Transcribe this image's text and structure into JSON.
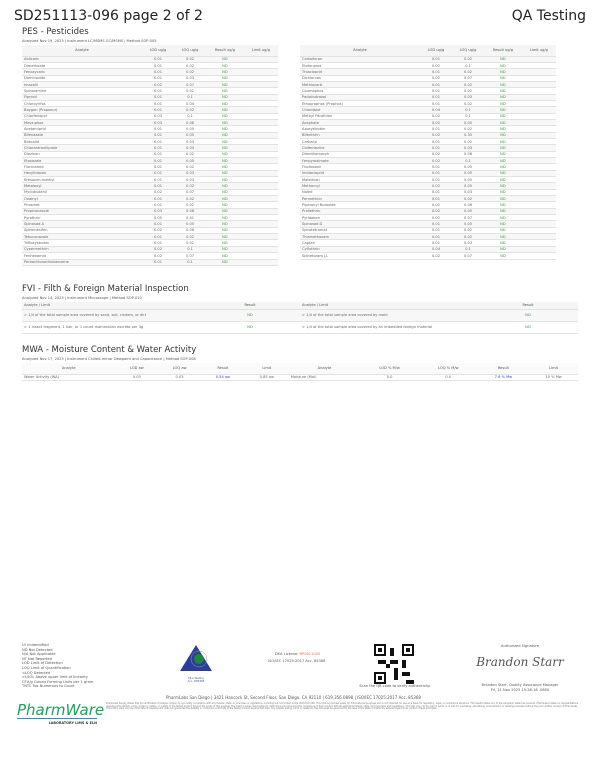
{
  "header": {
    "title": "SD251113-096 page 2 of 2",
    "right": "QA Testing"
  },
  "pes": {
    "title": "PES - Pesticides",
    "meta": "Analyzed Nov 19, 2025  |  Instrument LC/MSMS GC/MSMS  |  Method SOP-005",
    "cols": [
      "Analyte",
      "LOD ug/g",
      "LOQ ug/g",
      "Result ug/g",
      "Limit ug/g"
    ],
    "left": [
      [
        "Aldicarb",
        "0.01",
        "0.02",
        "ND"
      ],
      [
        "Dimethoate",
        "0.01",
        "0.02",
        "ND"
      ],
      [
        "Fenoxycarb",
        "0.01",
        "0.02",
        "ND"
      ],
      [
        "Daminozide",
        "0.01",
        "0.03",
        "ND"
      ],
      [
        "Imazalil",
        "0.02",
        "0.07",
        "ND"
      ],
      [
        "Spiroxamine",
        "0.01",
        "0.02",
        "ND"
      ],
      [
        "Fipronil",
        "0.01",
        "0.1",
        "ND"
      ],
      [
        "Chlorpyrifos",
        "0.01",
        "0.04",
        "ND"
      ],
      [
        "Baygon (Propoxur)",
        "0.01",
        "0.02",
        "ND"
      ],
      [
        "Chlorfenapyr",
        "0.03",
        "0.1",
        "ND"
      ],
      [
        "Mevinphos",
        "0.03",
        "0.08",
        "ND"
      ],
      [
        "Acetamiprid",
        "0.01",
        "0.05",
        "ND"
      ],
      [
        "Bifenazate",
        "0.01",
        "0.05",
        "ND"
      ],
      [
        "Boscalid",
        "0.01",
        "0.03",
        "ND"
      ],
      [
        "Chlorantraniliprole",
        "0.01",
        "0.04",
        "ND"
      ],
      [
        "Diazinon",
        "0.01",
        "0.02",
        "ND"
      ],
      [
        "Etoxazole",
        "0.01",
        "0.05",
        "ND"
      ],
      [
        "Flonicamid",
        "0.01",
        "0.02",
        "ND"
      ],
      [
        "Hexythiazox",
        "0.01",
        "0.03",
        "ND"
      ],
      [
        "Kresoxim-methyl",
        "0.01",
        "0.03",
        "ND"
      ],
      [
        "Metalaxyl",
        "0.01",
        "0.02",
        "ND"
      ],
      [
        "Myclobutanil",
        "0.02",
        "0.07",
        "ND"
      ],
      [
        "Oxamyl",
        "0.01",
        "0.02",
        "ND"
      ],
      [
        "Phosmet",
        "0.01",
        "0.02",
        "ND"
      ],
      [
        "Propiconazole",
        "0.03",
        "0.08",
        "ND"
      ],
      [
        "Pyrethrin",
        "0.05",
        "0.41",
        "ND"
      ],
      [
        "Spinosad A",
        "0.01",
        "0.05",
        "ND"
      ],
      [
        "Spiromesifen",
        "0.02",
        "0.06",
        "ND"
      ],
      [
        "Tebuconazole",
        "0.01",
        "0.02",
        "ND"
      ],
      [
        "Trifloxystrobin",
        "0.01",
        "0.02",
        "ND"
      ],
      [
        "Cypermethrin",
        "0.02",
        "0.1",
        "ND"
      ],
      [
        "Fenhexamid",
        "0.02",
        "0.07",
        "ND"
      ],
      [
        "Pentachloronitrobenzene",
        "0.01",
        "0.1",
        "ND"
      ]
    ],
    "right": [
      [
        "Carbofuran",
        "0.01",
        "0.02",
        "ND"
      ],
      [
        "Etofenprox",
        "0.02",
        "0.1",
        "ND"
      ],
      [
        "Thiacloprid",
        "0.01",
        "0.02",
        "ND"
      ],
      [
        "Dichlorvos",
        "0.02",
        "0.07",
        "ND"
      ],
      [
        "Methiocarb",
        "0.01",
        "0.02",
        "ND"
      ],
      [
        "Coumaphos",
        "0.01",
        "0.02",
        "ND"
      ],
      [
        "Paclobutrazol",
        "0.01",
        "0.03",
        "ND"
      ],
      [
        "Ethoprophos (Prophos)",
        "0.01",
        "0.02",
        "ND"
      ],
      [
        "Chlordane",
        "0.04",
        "0.1",
        "ND"
      ],
      [
        "Methyl Parathion",
        "0.02",
        "0.1",
        "ND"
      ],
      [
        "Acephate",
        "0.02",
        "0.05",
        "ND"
      ],
      [
        "Azoxystrobin",
        "0.01",
        "0.02",
        "ND"
      ],
      [
        "Bifenthrin",
        "0.02",
        "0.35",
        "ND"
      ],
      [
        "Carbaryl",
        "0.01",
        "0.02",
        "ND"
      ],
      [
        "Clofentezine",
        "0.01",
        "0.03",
        "ND"
      ],
      [
        "Dimethomorph",
        "0.02",
        "0.06",
        "ND"
      ],
      [
        "Fenpyroximate",
        "0.02",
        "0.1",
        "ND"
      ],
      [
        "Fludioxonil",
        "0.01",
        "0.05",
        "ND"
      ],
      [
        "Imidacloprid",
        "0.01",
        "0.05",
        "ND"
      ],
      [
        "Malathion",
        "0.01",
        "0.05",
        "ND"
      ],
      [
        "Methomyl",
        "0.02",
        "0.05",
        "ND"
      ],
      [
        "Naled",
        "0.01",
        "0.03",
        "ND"
      ],
      [
        "Permethrin",
        "0.01",
        "0.02",
        "ND"
      ],
      [
        "Piperonyl Butoxide",
        "0.02",
        "0.06",
        "ND"
      ],
      [
        "Prallethrin",
        "0.02",
        "0.05",
        "ND"
      ],
      [
        "Pyridaben",
        "0.02",
        "0.07",
        "ND"
      ],
      [
        "Spinosad D",
        "0.01",
        "0.05",
        "ND"
      ],
      [
        "Spirotetramat",
        "0.01",
        "0.02",
        "ND"
      ],
      [
        "Thiamethoxam",
        "0.01",
        "0.02",
        "ND"
      ],
      [
        "Captan",
        "0.01",
        "0.03",
        "ND"
      ],
      [
        "Cyfluthrin",
        "0.04",
        "0.1",
        "ND"
      ],
      [
        "Spinetoram J,L",
        "0.02",
        "0.07",
        "ND"
      ]
    ]
  },
  "fvi": {
    "title": "FVI - Filth & Foreign Material Inspection",
    "meta": "Analyzed Nov 14, 2025  |  Instrument Microscope  |  Method SOP-010",
    "cols": [
      "Analyte / Limit",
      "Result",
      "Analyte / Limit",
      "Result"
    ],
    "rows": [
      [
        "> 1/4 of the total sample area covered by sand, soil, cinders, or dirt",
        "ND",
        "> 1/4 of the total sample area covered by mold",
        "ND"
      ],
      [
        "> 1 insect fragment, 1 hair, or 1 count mammalian excreta per 3g",
        "ND",
        "> 1/4 of the total sample area covered by an imbedded foreign material",
        "ND"
      ]
    ]
  },
  "mwa": {
    "title": "MWA - Moisture Content & Water Activity",
    "meta": "Analyzed Nov 17, 2025  |  Instrument Chilled-mirror Dewpoint and Capacitance  |  Method SOP-008",
    "cols": [
      "Analyte",
      "LOD aw",
      "LOQ aw",
      "Result",
      "Limit",
      "Analyte",
      "LOD % M/w",
      "LOQ % M/w",
      "Result",
      "Limit"
    ],
    "row": [
      "Water Activity (WA)",
      "0.03",
      "0.03",
      "0.54 aw",
      "0.85 aw",
      "Moisture (MoI)",
      "0.0",
      "0.0",
      "7.6 % Mw",
      "15 % Mw"
    ]
  },
  "footer": {
    "legend": [
      "UI Unidentified",
      "ND Not Detected",
      "N/A Not Applicable",
      "NT Not Reported",
      "LOD Limit of Detection",
      "LOQ Limit of Quantification",
      "<LOQ Detected",
      ">ULOL Above upper limit of linearity",
      "CFU/g Colony Forming Units per 1 gram",
      "TNTC Too Numerous to Count"
    ],
    "pjla": "PJLA Testing",
    "pjla_acc": "Acc. #85368",
    "dea_label": "DEA License: ",
    "dea": "RP0611045",
    "iso": "ISO/IEC 17025:2017 Acc. 85368",
    "qr_caption": "Scan the QR code to verify authenticity.",
    "sig_label": "Authorized Signature",
    "signature": "Brandon Starr",
    "signer": "Brandon Starr, Quality Assurance Manager",
    "signed_at": "Fri, 21 Nov 2025 15:28:18 -0800",
    "address": "PharmLabs San Diego | 3421 Hancock St, Second Floor, San Diego, CA 92110 | 619.356.0898 | ISO/IEC 17025:2017 Acc. 85368",
    "logo": "PharmWare",
    "logo_sub": "LABORATORY LIMS & ELN",
    "disclaimer": "PharmLabs hereby states that its Certificates of Analysis (COAs) do not certify compliance with any federal, state, or local laws or regulations, including but not limited to the 2018 Farm Bill. This COA is provided solely for informational purposes and is not intended for use as a basis for regulatory, legal, or compliance decisions. The results relate only to the sample(s) tested as received. PharmLabs makes no representations regarding the identity, purity, potency, safety, or quality of the tested product beyond the scope of this analysis. The client is solely responsible for determining and ensuring the compliance of their product with all applicable federal, state, and local laws and regulations. This COA may not be used in whole or in part for marketing, advertising, endorsement, or labeling purposes without the prior written consent of PharmLabs. This COA is valid only as of the date of issuance and does not guarantee the stability or continued conformity of the tested product beyond that date. Any dispute arising out of or related to this COA shall be governed by the laws of the State of California, without regard to its conflict of laws principles."
  },
  "colors": {
    "nd": "#3a9a3a",
    "result_blue": "#2f3fd0",
    "dea": "#e8704a",
    "logo_green": "#1aa35a",
    "logo_blue": "#2a8fd0"
  }
}
